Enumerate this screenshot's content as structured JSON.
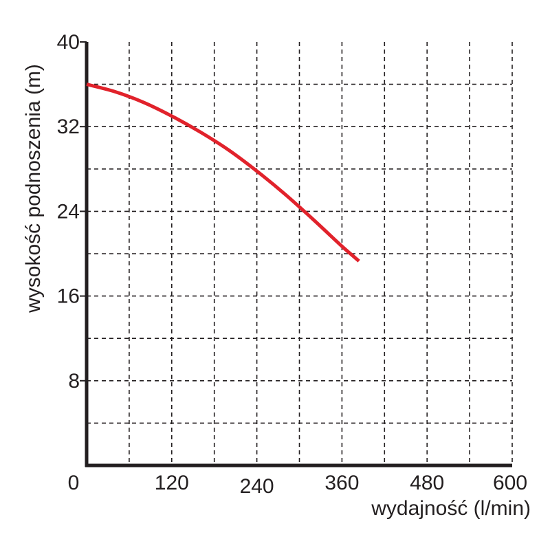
{
  "chart_data": {
    "type": "line",
    "title": "",
    "xlabel": "wydajność (l/min)",
    "ylabel": "wysokość podnoszenia (m)",
    "xlim": [
      0,
      600
    ],
    "ylim": [
      0,
      40
    ],
    "x_ticks": [
      0,
      120,
      240,
      360,
      480,
      600
    ],
    "x_tick_labels": [
      "0",
      "120",
      "240",
      "360",
      "480",
      "600"
    ],
    "y_ticks": [
      8,
      16,
      24,
      32,
      40
    ],
    "y_tick_labels": [
      "8",
      "16",
      "24",
      "32",
      "40"
    ],
    "x_grid_step": 60,
    "y_grid_step": 4,
    "grid": true,
    "grid_style": "dashed",
    "series": [
      {
        "color": "#e1222b",
        "x": [
          0,
          40,
          80,
          120,
          160,
          200,
          240,
          280,
          320,
          360,
          384
        ],
        "y": [
          36.0,
          35.3,
          34.3,
          33.0,
          31.5,
          29.8,
          27.8,
          25.6,
          23.2,
          20.7,
          19.3
        ]
      }
    ]
  }
}
